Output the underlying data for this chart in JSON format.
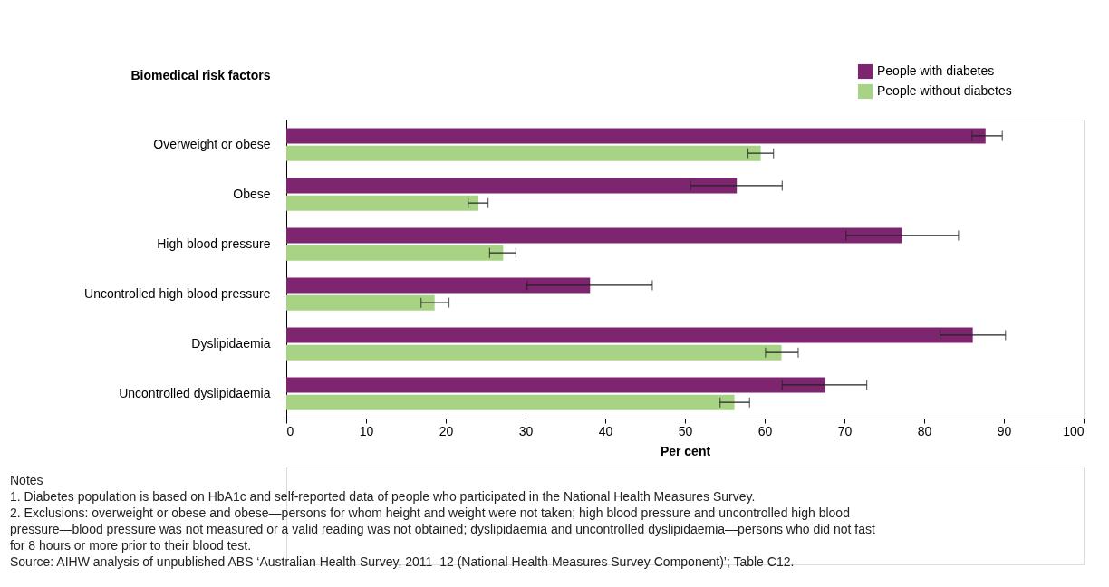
{
  "chart_data": {
    "type": "bar",
    "orientation": "horizontal",
    "ylabel": "Biomedical risk factors",
    "xlabel": "Per cent",
    "categories": [
      "Overweight or obese",
      "Obese",
      "High blood pressure",
      "Uncontrolled high blood pressure",
      "Dyslipidaemia",
      "Uncontrolled dyslipidaemia"
    ],
    "series": [
      {
        "name": "People with diabetes",
        "color": "#7d256e",
        "values": [
          87.7,
          56.5,
          77.2,
          38.1,
          86.1,
          67.6
        ],
        "errors": [
          [
            86.0,
            89.8
          ],
          [
            50.7,
            62.2
          ],
          [
            70.2,
            84.3
          ],
          [
            30.2,
            45.9
          ],
          [
            82.0,
            90.2
          ],
          [
            62.2,
            72.8
          ]
        ]
      },
      {
        "name": "People without diabetes",
        "color": "#a8d384",
        "values": [
          59.5,
          24.1,
          27.2,
          18.6,
          62.1,
          56.2
        ],
        "errors": [
          [
            57.9,
            61.1
          ],
          [
            22.8,
            25.3
          ],
          [
            25.5,
            28.8
          ],
          [
            16.9,
            20.4
          ],
          [
            60.1,
            64.2
          ],
          [
            54.4,
            58.1
          ]
        ]
      }
    ],
    "xlim": [
      0,
      100
    ],
    "xticks": [
      0,
      10,
      20,
      30,
      40,
      50,
      60,
      70,
      80,
      90,
      100
    ],
    "grid": false,
    "legend": "top right",
    "annotations": [
      "Notes",
      "1.  Diabetes population is based on HbA1c and self-reported data of people who participated in the National Health Measures Survey.",
      "2.  Exclusions: overweight or obese and obese—persons for whom height and weight were not taken; high blood pressure and uncontrolled high blood pressure—blood pressure was not measured or a valid reading was not obtained; dyslipidaemia and uncontrolled dyslipidaemia—persons who did not fast for 8 hours or more prior to their blood test.",
      "Source: AIHW analysis of unpublished ABS ‘Australian Health Survey, 2011–12 (National Health Measures Survey Component)’; Table C12."
    ]
  }
}
